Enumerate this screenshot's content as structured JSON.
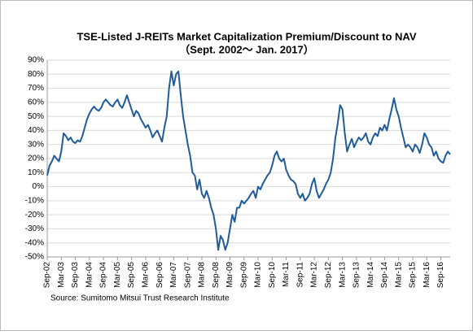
{
  "chart_data": {
    "type": "line",
    "title": "TSE-Listed  J-REITs Market Capitalization Premium/Discount  to NAV",
    "subtitle": "（Sept. 2002～ Jan. 2017）",
    "source": "Source: Sumitomo Mitsui Trust Research Institute",
    "x": [
      "2002-09",
      "2002-10",
      "2002-11",
      "2002-12",
      "2003-01",
      "2003-02",
      "2003-03",
      "2003-04",
      "2003-05",
      "2003-06",
      "2003-07",
      "2003-08",
      "2003-09",
      "2003-10",
      "2003-11",
      "2003-12",
      "2004-01",
      "2004-02",
      "2004-03",
      "2004-04",
      "2004-05",
      "2004-06",
      "2004-07",
      "2004-08",
      "2004-09",
      "2004-10",
      "2004-11",
      "2004-12",
      "2005-01",
      "2005-02",
      "2005-03",
      "2005-04",
      "2005-05",
      "2005-06",
      "2005-07",
      "2005-08",
      "2005-09",
      "2005-10",
      "2005-11",
      "2005-12",
      "2006-01",
      "2006-02",
      "2006-03",
      "2006-04",
      "2006-05",
      "2006-06",
      "2006-07",
      "2006-08",
      "2006-09",
      "2006-10",
      "2006-11",
      "2006-12",
      "2007-01",
      "2007-02",
      "2007-03",
      "2007-04",
      "2007-05",
      "2007-06",
      "2007-07",
      "2007-08",
      "2007-09",
      "2007-10",
      "2007-11",
      "2007-12",
      "2008-01",
      "2008-02",
      "2008-03",
      "2008-04",
      "2008-05",
      "2008-06",
      "2008-07",
      "2008-08",
      "2008-09",
      "2008-10",
      "2008-11",
      "2008-12",
      "2009-01",
      "2009-02",
      "2009-03",
      "2009-04",
      "2009-05",
      "2009-06",
      "2009-07",
      "2009-08",
      "2009-09",
      "2009-10",
      "2009-11",
      "2009-12",
      "2010-01",
      "2010-02",
      "2010-03",
      "2010-04",
      "2010-05",
      "2010-06",
      "2010-07",
      "2010-08",
      "2010-09",
      "2010-10",
      "2010-11",
      "2010-12",
      "2011-01",
      "2011-02",
      "2011-03",
      "2011-04",
      "2011-05",
      "2011-06",
      "2011-07",
      "2011-08",
      "2011-09",
      "2011-10",
      "2011-11",
      "2011-12",
      "2012-01",
      "2012-02",
      "2012-03",
      "2012-04",
      "2012-05",
      "2012-06",
      "2012-07",
      "2012-08",
      "2012-09",
      "2012-10",
      "2012-11",
      "2012-12",
      "2013-01",
      "2013-02",
      "2013-03",
      "2013-04",
      "2013-05",
      "2013-06",
      "2013-07",
      "2013-08",
      "2013-09",
      "2013-10",
      "2013-11",
      "2013-12",
      "2014-01",
      "2014-02",
      "2014-03",
      "2014-04",
      "2014-05",
      "2014-06",
      "2014-07",
      "2014-08",
      "2014-09",
      "2014-10",
      "2014-11",
      "2014-12",
      "2015-01",
      "2015-02",
      "2015-03",
      "2015-04",
      "2015-05",
      "2015-06",
      "2015-07",
      "2015-08",
      "2015-09",
      "2015-10",
      "2015-11",
      "2015-12",
      "2016-01",
      "2016-02",
      "2016-03",
      "2016-04",
      "2016-05",
      "2016-06",
      "2016-07",
      "2016-08",
      "2016-09",
      "2016-10",
      "2016-11",
      "2016-12",
      "2017-01"
    ],
    "series": [
      {
        "color": "#1f5c99",
        "values": [
          8,
          15,
          18,
          22,
          20,
          18,
          25,
          38,
          36,
          33,
          35,
          32,
          31,
          33,
          32,
          36,
          42,
          48,
          52,
          55,
          57,
          55,
          54,
          56,
          60,
          62,
          60,
          58,
          57,
          60,
          62,
          58,
          56,
          60,
          65,
          60,
          55,
          50,
          54,
          52,
          48,
          45,
          42,
          44,
          40,
          35,
          38,
          40,
          36,
          32,
          42,
          50,
          70,
          82,
          72,
          80,
          82,
          65,
          50,
          40,
          30,
          22,
          10,
          8,
          -2,
          5,
          -5,
          -8,
          -3,
          -8,
          -15,
          -20,
          -30,
          -45,
          -35,
          -38,
          -45,
          -40,
          -30,
          -20,
          -25,
          -15,
          -15,
          -10,
          -12,
          -10,
          -8,
          -5,
          -3,
          -8,
          0,
          -2,
          2,
          5,
          8,
          10,
          15,
          22,
          25,
          20,
          18,
          20,
          12,
          8,
          5,
          4,
          2,
          -5,
          -8,
          -5,
          -10,
          -8,
          -5,
          2,
          6,
          -3,
          -8,
          -5,
          -2,
          2,
          5,
          10,
          20,
          35,
          45,
          58,
          55,
          38,
          25,
          30,
          34,
          28,
          32,
          35,
          33,
          35,
          38,
          32,
          30,
          35,
          38,
          36,
          42,
          40,
          44,
          40,
          48,
          55,
          63,
          55,
          50,
          42,
          35,
          28,
          30,
          28,
          25,
          30,
          28,
          24,
          30,
          38,
          35,
          30,
          28,
          22,
          25,
          20,
          18,
          17,
          22,
          25,
          23
        ]
      }
    ],
    "xticks": [
      {
        "value": "2002-09",
        "label": "Sep-02"
      },
      {
        "value": "2003-03",
        "label": "Mar-03"
      },
      {
        "value": "2003-09",
        "label": "Sep-03"
      },
      {
        "value": "2004-03",
        "label": "Mar-04"
      },
      {
        "value": "2004-09",
        "label": "Sep-04"
      },
      {
        "value": "2005-03",
        "label": "Mar-05"
      },
      {
        "value": "2005-09",
        "label": "Sep-05"
      },
      {
        "value": "2006-03",
        "label": "Mar-06"
      },
      {
        "value": "2006-09",
        "label": "Sep-06"
      },
      {
        "value": "2007-03",
        "label": "Mar-07"
      },
      {
        "value": "2007-09",
        "label": "Sep-07"
      },
      {
        "value": "2008-03",
        "label": "Mar-08"
      },
      {
        "value": "2008-09",
        "label": "Sep-08"
      },
      {
        "value": "2009-03",
        "label": "Mar-09"
      },
      {
        "value": "2009-09",
        "label": "Sep-09"
      },
      {
        "value": "2010-03",
        "label": "Mar-10"
      },
      {
        "value": "2010-09",
        "label": "Sep-10"
      },
      {
        "value": "2011-03",
        "label": "Mar-11"
      },
      {
        "value": "2011-09",
        "label": "Sep-11"
      },
      {
        "value": "2012-03",
        "label": "Mar-12"
      },
      {
        "value": "2012-09",
        "label": "Sep-12"
      },
      {
        "value": "2013-03",
        "label": "Mar-13"
      },
      {
        "value": "2013-09",
        "label": "Sep-13"
      },
      {
        "value": "2014-03",
        "label": "Mar-14"
      },
      {
        "value": "2014-09",
        "label": "Sep-14"
      },
      {
        "value": "2015-03",
        "label": "Mar-15"
      },
      {
        "value": "2015-09",
        "label": "Sep-15"
      },
      {
        "value": "2016-03",
        "label": "Mar-16"
      },
      {
        "value": "2016-09",
        "label": "Sep-16"
      }
    ],
    "ylim": [
      -50,
      90
    ],
    "yticks": [
      {
        "value": 90,
        "label": "90%"
      },
      {
        "value": 80,
        "label": "80%"
      },
      {
        "value": 70,
        "label": "70%"
      },
      {
        "value": 60,
        "label": "60%"
      },
      {
        "value": 50,
        "label": "50%"
      },
      {
        "value": 40,
        "label": "40%"
      },
      {
        "value": 30,
        "label": "30%"
      },
      {
        "value": 20,
        "label": "20%"
      },
      {
        "value": 10,
        "label": "10%"
      },
      {
        "value": 0,
        "label": "0%"
      },
      {
        "value": -10,
        "label": "-10%"
      },
      {
        "value": -20,
        "label": "-20%"
      },
      {
        "value": -30,
        "label": "-30%"
      },
      {
        "value": -40,
        "label": "-40%"
      },
      {
        "value": -50,
        "label": "-50%"
      }
    ],
    "grid": true
  }
}
